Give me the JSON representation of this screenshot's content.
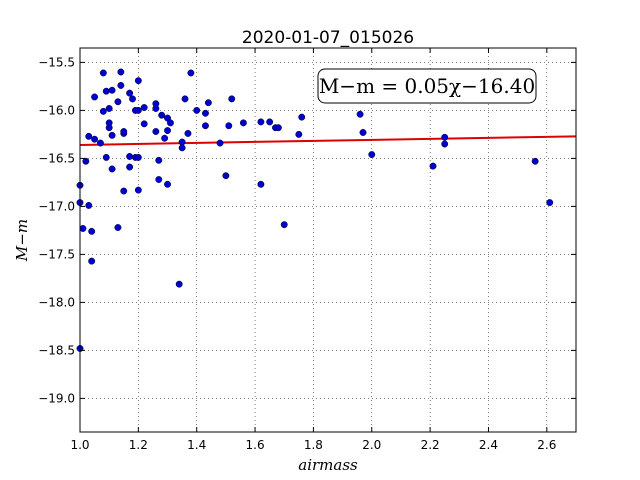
{
  "chart_data": {
    "type": "scatter",
    "title": "2020-01-07_015026",
    "xlabel": "airmass",
    "ylabel": "M−m",
    "xlim": [
      1.0,
      2.7
    ],
    "ylim": [
      -19.35,
      -15.35
    ],
    "y_inverted": true,
    "grid": true,
    "xticks": [
      1.0,
      1.2,
      1.4,
      1.6,
      1.8,
      2.0,
      2.2,
      2.4,
      2.6
    ],
    "xtick_labels": [
      "1.0",
      "1.2",
      "1.4",
      "1.6",
      "1.8",
      "2.0",
      "2.2",
      "2.4",
      "2.6"
    ],
    "yticks": [
      -15.5,
      -16.0,
      -16.5,
      -17.0,
      -17.5,
      -18.0,
      -18.5,
      -19.0
    ],
    "ytick_labels": [
      "−15.5",
      "−16.0",
      "−16.5",
      "−17.0",
      "−17.5",
      "−18.0",
      "−18.5",
      "−19.0"
    ],
    "annotation": "M−m = 0.05χ−16.40",
    "annotation_placement": "top-right",
    "points_color": "#0000cc",
    "fit_color": "#dd0000",
    "points": [
      [
        1.0,
        -16.78
      ],
      [
        1.0,
        -16.96
      ],
      [
        1.0,
        -18.48
      ],
      [
        1.01,
        -17.23
      ],
      [
        1.02,
        -16.53
      ],
      [
        1.03,
        -16.99
      ],
      [
        1.03,
        -16.27
      ],
      [
        1.04,
        -17.57
      ],
      [
        1.04,
        -17.26
      ],
      [
        1.05,
        -16.3
      ],
      [
        1.05,
        -15.86
      ],
      [
        1.07,
        -16.34
      ],
      [
        1.08,
        -15.61
      ],
      [
        1.08,
        -16.01
      ],
      [
        1.09,
        -15.8
      ],
      [
        1.09,
        -16.49
      ],
      [
        1.1,
        -16.18
      ],
      [
        1.1,
        -16.13
      ],
      [
        1.1,
        -15.98
      ],
      [
        1.11,
        -15.79
      ],
      [
        1.11,
        -16.61
      ],
      [
        1.11,
        -16.26
      ],
      [
        1.13,
        -15.91
      ],
      [
        1.13,
        -17.22
      ],
      [
        1.14,
        -15.6
      ],
      [
        1.14,
        -15.74
      ],
      [
        1.15,
        -16.24
      ],
      [
        1.15,
        -16.22
      ],
      [
        1.15,
        -16.84
      ],
      [
        1.17,
        -16.48
      ],
      [
        1.17,
        -16.59
      ],
      [
        1.17,
        -15.82
      ],
      [
        1.18,
        -15.88
      ],
      [
        1.19,
        -16.0
      ],
      [
        1.19,
        -16.49
      ],
      [
        1.2,
        -16.49
      ],
      [
        1.2,
        -16.83
      ],
      [
        1.2,
        -15.69
      ],
      [
        1.2,
        -16.0
      ],
      [
        1.22,
        -15.97
      ],
      [
        1.22,
        -16.14
      ],
      [
        1.26,
        -15.93
      ],
      [
        1.26,
        -15.98
      ],
      [
        1.26,
        -16.22
      ],
      [
        1.27,
        -16.52
      ],
      [
        1.27,
        -16.72
      ],
      [
        1.28,
        -16.05
      ],
      [
        1.29,
        -16.29
      ],
      [
        1.3,
        -16.21
      ],
      [
        1.3,
        -16.08
      ],
      [
        1.3,
        -16.77
      ],
      [
        1.31,
        -16.13
      ],
      [
        1.34,
        -17.81
      ],
      [
        1.35,
        -16.33
      ],
      [
        1.35,
        -16.39
      ],
      [
        1.36,
        -15.88
      ],
      [
        1.37,
        -16.24
      ],
      [
        1.38,
        -15.61
      ],
      [
        1.4,
        -16.0
      ],
      [
        1.43,
        -16.16
      ],
      [
        1.43,
        -16.03
      ],
      [
        1.44,
        -15.92
      ],
      [
        1.48,
        -16.34
      ],
      [
        1.5,
        -16.68
      ],
      [
        1.51,
        -16.16
      ],
      [
        1.52,
        -15.88
      ],
      [
        1.56,
        -16.13
      ],
      [
        1.62,
        -16.12
      ],
      [
        1.62,
        -16.77
      ],
      [
        1.65,
        -16.12
      ],
      [
        1.67,
        -16.18
      ],
      [
        1.68,
        -16.18
      ],
      [
        1.7,
        -17.19
      ],
      [
        1.75,
        -16.25
      ],
      [
        1.76,
        -16.07
      ],
      [
        1.96,
        -16.04
      ],
      [
        1.97,
        -16.23
      ],
      [
        2.0,
        -16.46
      ],
      [
        2.21,
        -16.58
      ],
      [
        2.25,
        -16.28
      ],
      [
        2.25,
        -16.35
      ],
      [
        2.56,
        -16.53
      ],
      [
        2.61,
        -16.96
      ]
    ],
    "fit_line": [
      [
        1.0,
        -16.36
      ],
      [
        2.7,
        -16.27
      ]
    ]
  }
}
